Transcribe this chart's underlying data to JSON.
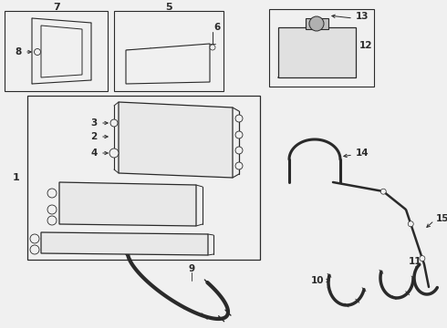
{
  "bg_color": "#f0f0f0",
  "line_color": "#2a2a2a",
  "box_color": "#f0f0f0",
  "white": "#ffffff",
  "gray_light": "#d8d8d8",
  "gray_med": "#b0b0b0"
}
